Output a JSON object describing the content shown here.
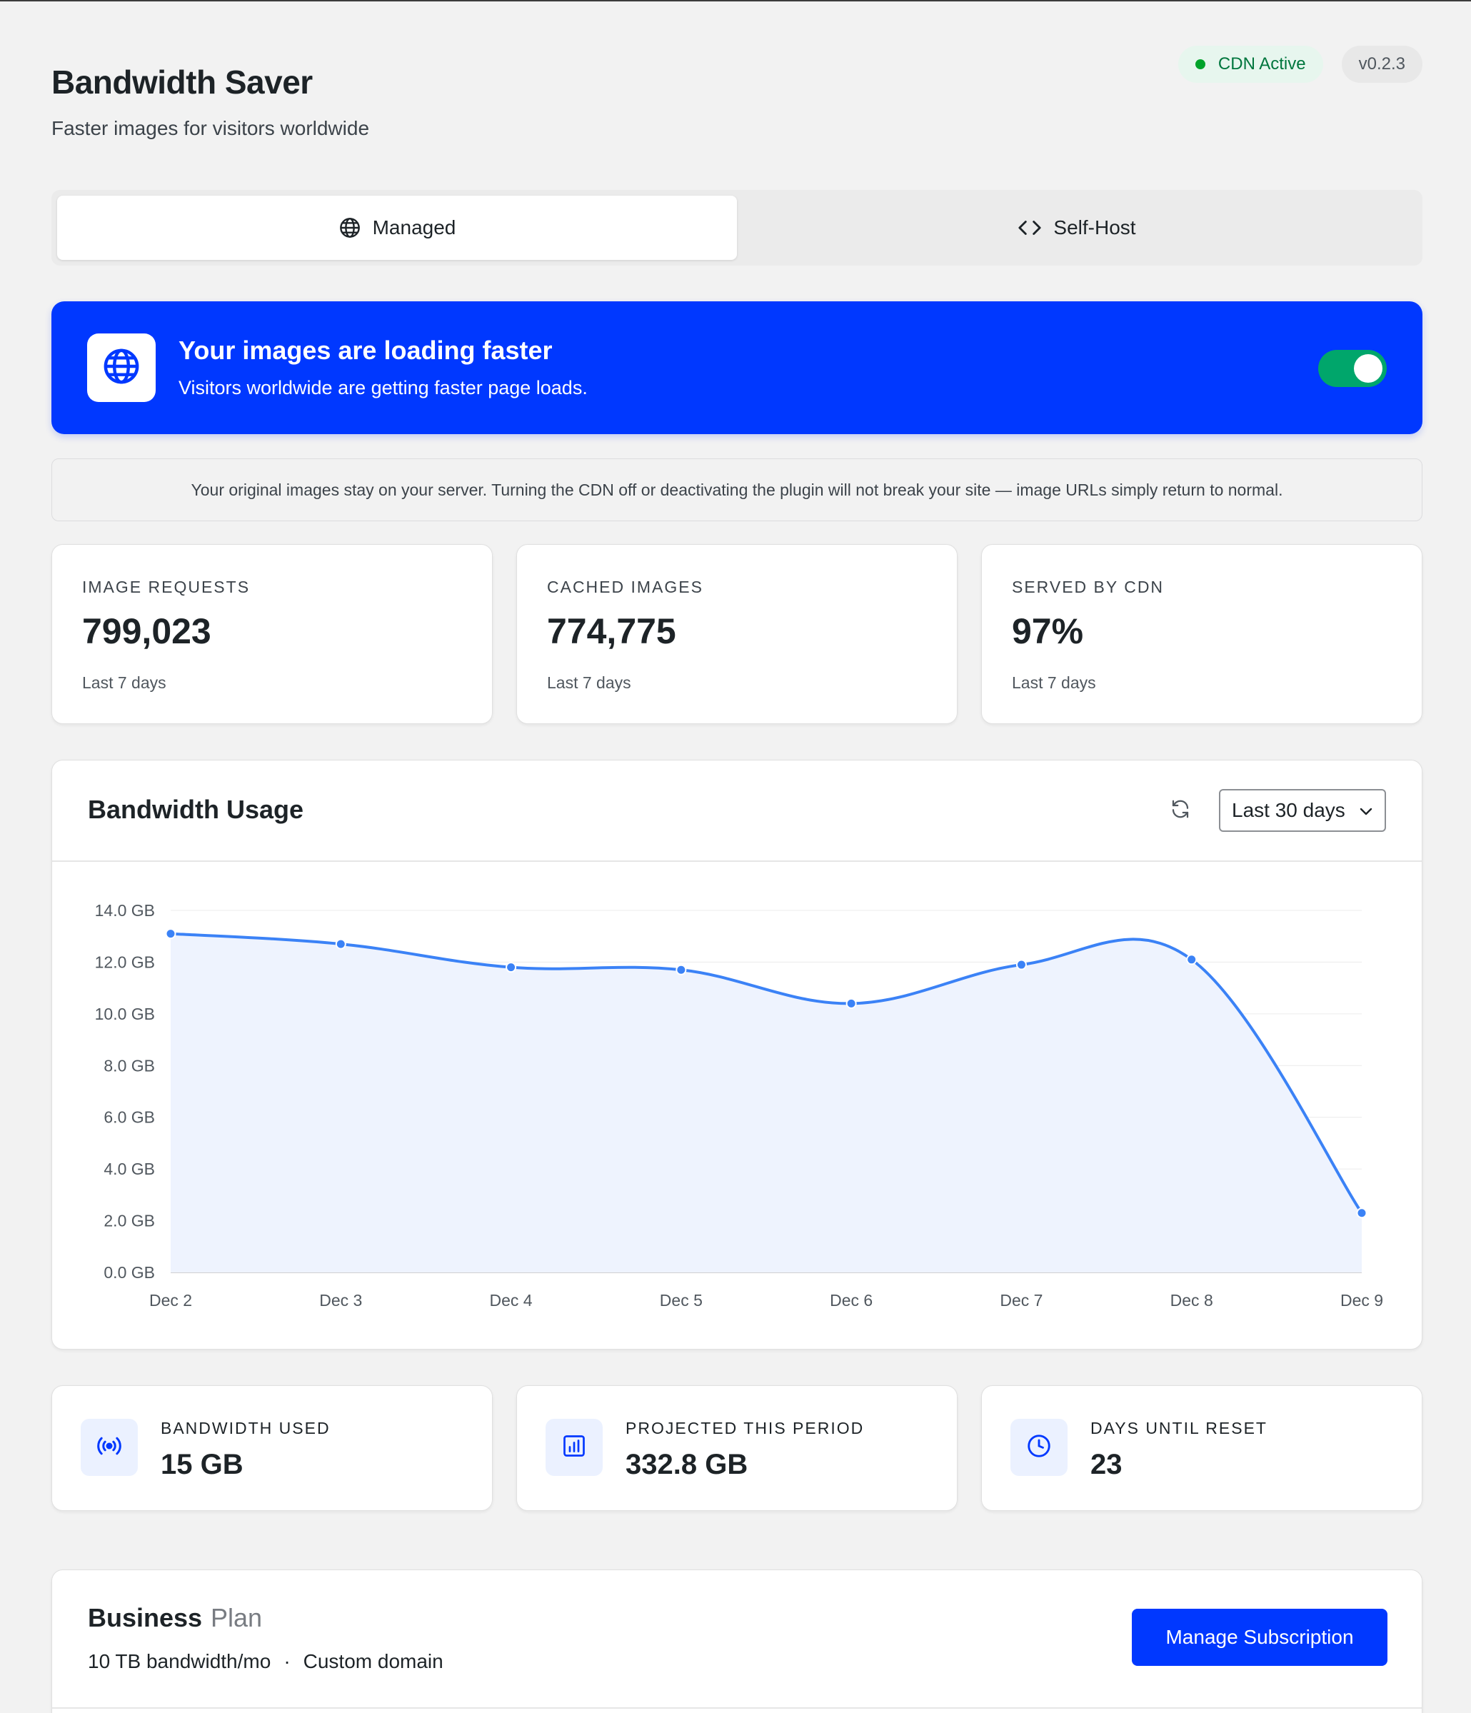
{
  "header": {
    "title": "Bandwidth Saver",
    "subtitle": "Faster images for visitors worldwide",
    "cdn_badge": "CDN Active",
    "version_badge": "v0.2.3"
  },
  "tabs": [
    {
      "label": "Managed",
      "icon": "globe-icon",
      "active": true
    },
    {
      "label": "Self-Host",
      "icon": "code-icon",
      "active": false
    }
  ],
  "hero": {
    "title": "Your images are loading faster",
    "subtitle": "Visitors worldwide are getting faster page loads.",
    "toggle_on": true
  },
  "notice": "Your original images stay on your server. Turning the CDN off or deactivating the plugin will not break your site — image URLs simply return to normal.",
  "stats": [
    {
      "label": "IMAGE REQUESTS",
      "value": "799,023",
      "period": "Last 7 days"
    },
    {
      "label": "CACHED IMAGES",
      "value": "774,775",
      "period": "Last 7 days"
    },
    {
      "label": "SERVED BY CDN",
      "value": "97%",
      "period": "Last 7 days"
    }
  ],
  "chart": {
    "title": "Bandwidth Usage",
    "range_label": "Last 30 days"
  },
  "chart_data": {
    "type": "area",
    "title": "",
    "xlabel": "",
    "ylabel": "",
    "categories": [
      "Dec 2",
      "Dec 3",
      "Dec 4",
      "Dec 5",
      "Dec 6",
      "Dec 7",
      "Dec 8",
      "Dec 9"
    ],
    "values": [
      13.1,
      12.7,
      11.8,
      11.7,
      10.4,
      11.9,
      12.1,
      2.3
    ],
    "yticks": [
      "0.0 GB",
      "2.0 GB",
      "4.0 GB",
      "6.0 GB",
      "8.0 GB",
      "10.0 GB",
      "12.0 GB",
      "14.0 GB"
    ],
    "ylim": [
      0,
      14
    ],
    "unit": "GB",
    "grid": true,
    "line_color": "#3b82f6",
    "fill_color": "#eef3fe"
  },
  "metrics": [
    {
      "label": "BANDWIDTH USED",
      "value": "15 GB",
      "icon": "broadcast-icon"
    },
    {
      "label": "PROJECTED THIS PERIOD",
      "value": "332.8 GB",
      "icon": "bar-chart-icon"
    },
    {
      "label": "DAYS UNTIL RESET",
      "value": "23",
      "icon": "clock-icon"
    }
  ],
  "plan": {
    "name": "Business",
    "suffix": "Plan",
    "features": [
      "10 TB bandwidth/mo",
      "Custom domain"
    ],
    "separator": "·",
    "button_label": "Manage Subscription"
  },
  "colors": {
    "primary": "#0038ff",
    "success": "#00a66b",
    "chart_line": "#3b82f6"
  }
}
